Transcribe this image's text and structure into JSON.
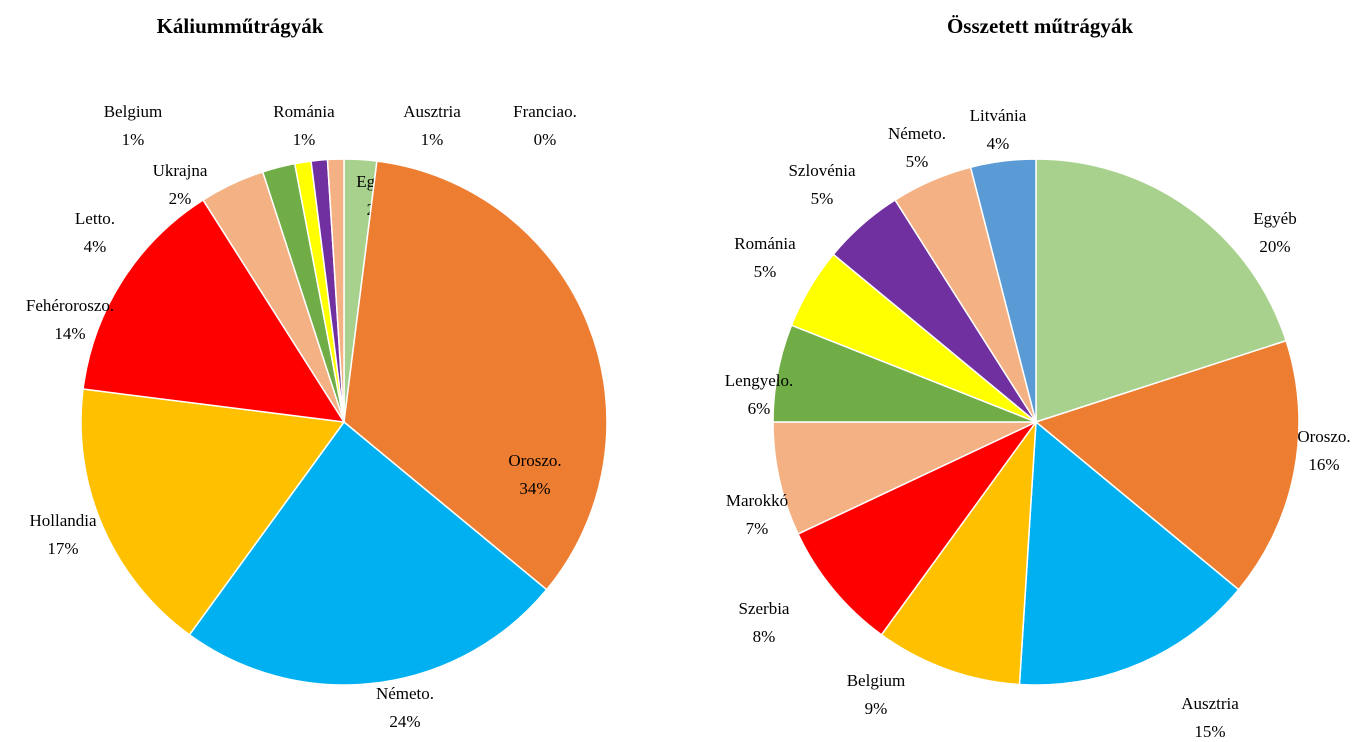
{
  "chart_data": [
    {
      "type": "pie",
      "title": "Káliumműtrágyák",
      "categories": [
        "Egyéb",
        "Oroszo.",
        "Németo.",
        "Hollandia",
        "Fehéroroszo.",
        "Letto.",
        "Ukrajna",
        "Belgium",
        "Románia",
        "Ausztria",
        "Franciao."
      ],
      "values": [
        2,
        34,
        24,
        17,
        14,
        4,
        2,
        1,
        1,
        1,
        0
      ],
      "value_labels": [
        "2%",
        "34%",
        "24%",
        "17%",
        "14%",
        "4%",
        "2%",
        "1%",
        "1%",
        "1%",
        "0%"
      ],
      "colors": [
        "#a9d18e",
        "#ed7d31",
        "#00b0f0",
        "#ffc000",
        "#ff0000",
        "#f4b183",
        "#70ad47",
        "#ffff00",
        "#7030a0",
        "#f4b183",
        "#5b9bd5"
      ]
    },
    {
      "type": "pie",
      "title": "Összetett műtrágyák",
      "categories": [
        "Egyéb",
        "Oroszo.",
        "Ausztria",
        "Belgium",
        "Szerbia",
        "Marokkó",
        "Lengyelo.",
        "Románia",
        "Szlovénia",
        "Németo.",
        "Litvánia"
      ],
      "values": [
        20,
        16,
        15,
        9,
        8,
        7,
        6,
        5,
        5,
        5,
        4
      ],
      "value_labels": [
        "20%",
        "16%",
        "15%",
        "9%",
        "8%",
        "7%",
        "6%",
        "5%",
        "5%",
        "5%",
        "4%"
      ],
      "colors": [
        "#a9d18e",
        "#ed7d31",
        "#00b0f0",
        "#ffc000",
        "#ff0000",
        "#f4b183",
        "#70ad47",
        "#ffff00",
        "#7030a0",
        "#f4b183",
        "#5b9bd5"
      ]
    }
  ]
}
